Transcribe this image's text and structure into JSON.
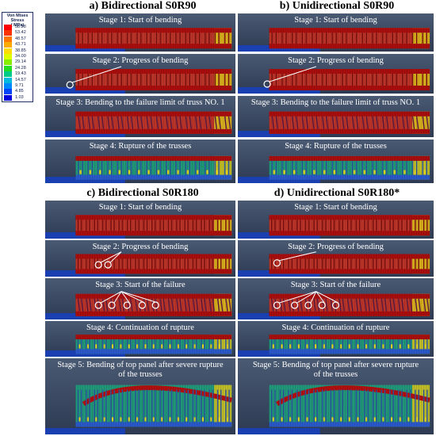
{
  "legend": {
    "title_line1": "Von Mises Stress",
    "title_line2": "( MPa)",
    "values": [
      "58.28",
      "53.42",
      "48.57",
      "43.71",
      "38.85",
      "34.00",
      "29.14",
      "24.28",
      "19.43",
      "14.57",
      "9.71",
      "4.85",
      "1.03"
    ],
    "colors": [
      "#ff0000",
      "#ff3300",
      "#ff7700",
      "#ffaa00",
      "#ffdd00",
      "#ddff00",
      "#88ee00",
      "#22dd22",
      "#00cc88",
      "#00bbdd",
      "#0088ff",
      "#0044ff",
      "#0000dd"
    ]
  },
  "sections": {
    "a": {
      "title": "a) Bidirectional S0R90",
      "stages": [
        "Stage 1: Start of bending",
        "Stage 2: Progress of bending",
        "Stage 3: Bending to the failure limit of  truss NO. 1",
        "Stage 4: Rupture of the trusses"
      ]
    },
    "b": {
      "title": "b) Unidirectional S0R90",
      "stages": [
        "Stage 1: Start of bending",
        "Stage 2: Progress of bending",
        "Stage 3: Bending to the failure limit of  truss NO. 1",
        "Stage 4: Rupture of the trusses"
      ]
    },
    "c": {
      "title": "c) Bidirectional S0R180",
      "stages": [
        "Stage 1: Start of bending",
        "Stage 2: Progress of bending",
        "Stage 3: Start of the failure",
        "Stage 4: Continuation of rupture",
        "Stage 5: Bending of top panel after severe rupture",
        "of the trusses"
      ]
    },
    "d": {
      "title": "d) Unidirectional S0R180*",
      "stages": [
        "Stage 1: Start of bending",
        "Stage 2: Progress of bending",
        "Stage 3: Start of the failure",
        "Stage 4: Continuation of rupture",
        "Stage 5: Bending of top panel after severe rupture",
        "of the trusses"
      ]
    }
  }
}
